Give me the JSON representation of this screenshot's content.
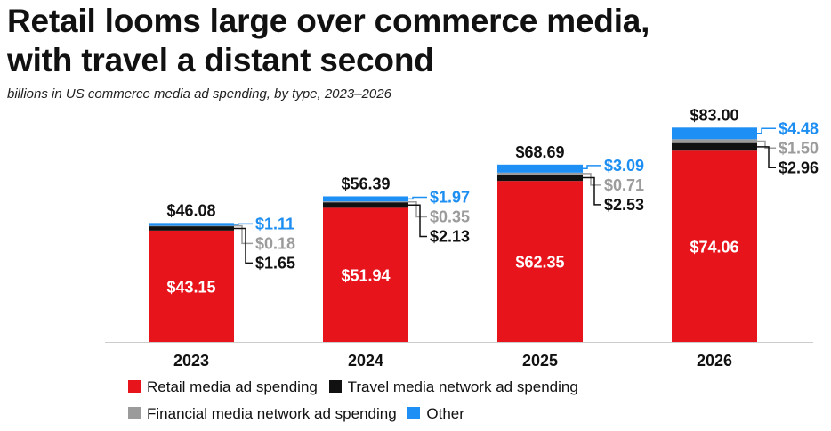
{
  "title": "Retail looms large over commerce media,\nwith travel a distant second",
  "subtitle": "billions in US commerce media ad spending, by type, 2023–2026",
  "colors": {
    "retail": "#e8141c",
    "travel": "#111111",
    "financial": "#9b9b9b",
    "other": "#1e90f5",
    "financial_label": "#9b9b9b",
    "other_label": "#1e8ff2"
  },
  "chart_data": {
    "type": "bar",
    "stacked": true,
    "categories": [
      "2023",
      "2024",
      "2025",
      "2026"
    ],
    "series": [
      {
        "name": "Retail media ad spending",
        "values": [
          43.15,
          51.94,
          62.35,
          74.06
        ],
        "labels": [
          "$43.15",
          "$51.94",
          "$62.35",
          "$74.06"
        ]
      },
      {
        "name": "Travel media network ad spending",
        "values": [
          1.65,
          2.13,
          2.53,
          2.96
        ],
        "labels": [
          "$1.65",
          "$2.13",
          "$2.53",
          "$2.96"
        ]
      },
      {
        "name": "Financial media network ad spending",
        "values": [
          0.18,
          0.35,
          0.71,
          1.5
        ],
        "labels": [
          "$0.18",
          "$0.35",
          "$0.71",
          "$1.50"
        ]
      },
      {
        "name": "Other",
        "values": [
          1.11,
          1.97,
          3.09,
          4.48
        ],
        "labels": [
          "$1.11",
          "$1.97",
          "$3.09",
          "$4.48"
        ]
      }
    ],
    "totals": [
      46.08,
      56.39,
      68.69,
      83.0
    ],
    "total_labels": [
      "$46.08",
      "$56.39",
      "$68.69",
      "$83.00"
    ],
    "grid": false,
    "legend_position": "bottom"
  }
}
